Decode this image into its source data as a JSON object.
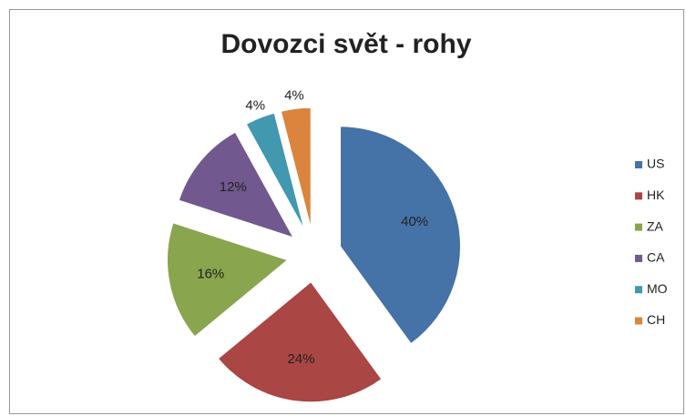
{
  "chart_data": {
    "type": "pie",
    "title": "Dovozci svět - rohy",
    "categories": [
      "US",
      "HK",
      "ZA",
      "CA",
      "MO",
      "CH"
    ],
    "values": [
      40,
      24,
      16,
      12,
      4,
      4
    ],
    "value_labels": [
      "40%",
      "24%",
      "16%",
      "12%",
      "4%",
      "4%"
    ],
    "colors": [
      "#4572a7",
      "#aa4643",
      "#89a54e",
      "#71588f",
      "#4198af",
      "#db843d"
    ],
    "legend": "right"
  }
}
